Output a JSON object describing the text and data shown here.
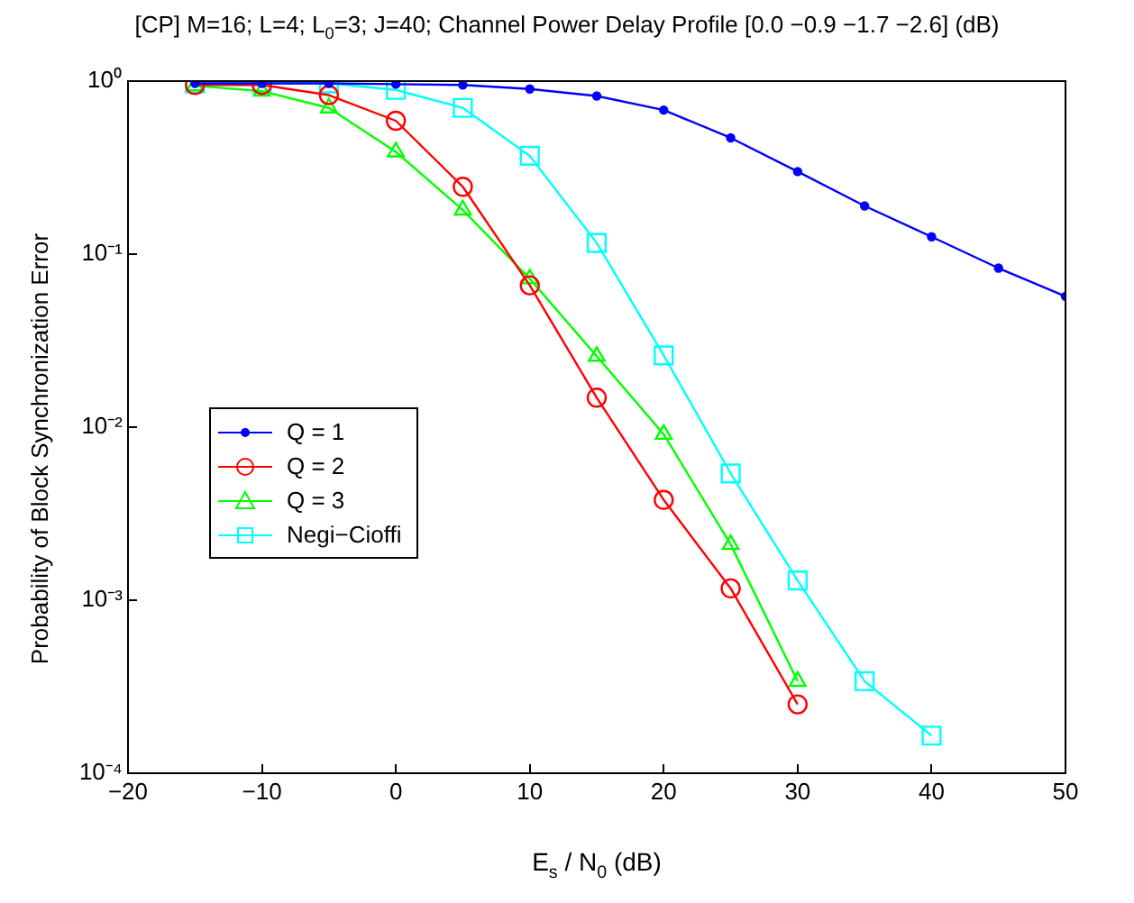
{
  "chart_data": {
    "type": "line",
    "title": "[CP] M=16; L=4; L$_{0}$=3; J=40; Channel Power Delay Profile [0.0 −0.9 −1.7 −2.6] (dB)",
    "xlabel": "E$_{s}$ / N$_{0}$ (dB)",
    "ylabel": "Probability of Block Synchronization Error",
    "log": "y",
    "grid": false,
    "legend": "left",
    "line_style": "solid",
    "xlim": [
      -20,
      50
    ],
    "xticks": [
      {
        "value": -20,
        "label": "−20"
      },
      {
        "value": -10,
        "label": "−10"
      },
      0,
      10,
      20,
      30,
      40,
      50
    ],
    "ylim": [
      0.0001,
      1
    ],
    "yticks": [
      {
        "value": 0.0001,
        "label": "10⁻⁴"
      },
      {
        "value": 0.001,
        "label": "10⁻³"
      },
      {
        "value": 0.01,
        "label": "10⁻²"
      },
      {
        "value": 0.1,
        "label": "10⁻¹"
      },
      {
        "value": 1,
        "label": "10⁰"
      }
    ],
    "series": [
      {
        "name": "Q = 1",
        "color": "#0000ff",
        "marker": "circle",
        "x": [
          -15,
          -10,
          -5,
          0,
          5,
          10,
          15,
          20,
          25,
          30,
          35,
          40,
          45,
          50
        ],
        "values": [
          0.97,
          0.97,
          0.97,
          0.96,
          0.95,
          0.9,
          0.82,
          0.68,
          0.47,
          0.3,
          0.19,
          0.126,
          0.083,
          0.057
        ]
      },
      {
        "name": "Q = 2",
        "color": "#ff0000",
        "marker": "circle",
        "x": [
          -15,
          -10,
          -5,
          0,
          5,
          10,
          15,
          20,
          25,
          30
        ],
        "values": [
          0.95,
          0.95,
          0.83,
          0.59,
          0.245,
          0.066,
          0.0148,
          0.0038,
          0.00117,
          0.00025
        ]
      },
      {
        "name": "Q = 3",
        "color": "#00ff00",
        "marker": "triangle",
        "x": [
          -15,
          -10,
          -5,
          0,
          5,
          10,
          15,
          20,
          25,
          30
        ],
        "values": [
          0.94,
          0.875,
          0.7,
          0.39,
          0.18,
          0.072,
          0.0257,
          0.0091,
          0.0021,
          0.00034
        ]
      },
      {
        "name": "Negi−Cioffi",
        "color": "#00ffff",
        "marker": "square",
        "x": [
          -15,
          -10,
          -5,
          0,
          5,
          10,
          15,
          20,
          25,
          30,
          35,
          40
        ],
        "values": [
          0.97,
          0.97,
          0.97,
          0.89,
          0.7,
          0.37,
          0.116,
          0.026,
          0.0054,
          0.0013,
          0.00034,
          0.000165
        ]
      }
    ]
  }
}
